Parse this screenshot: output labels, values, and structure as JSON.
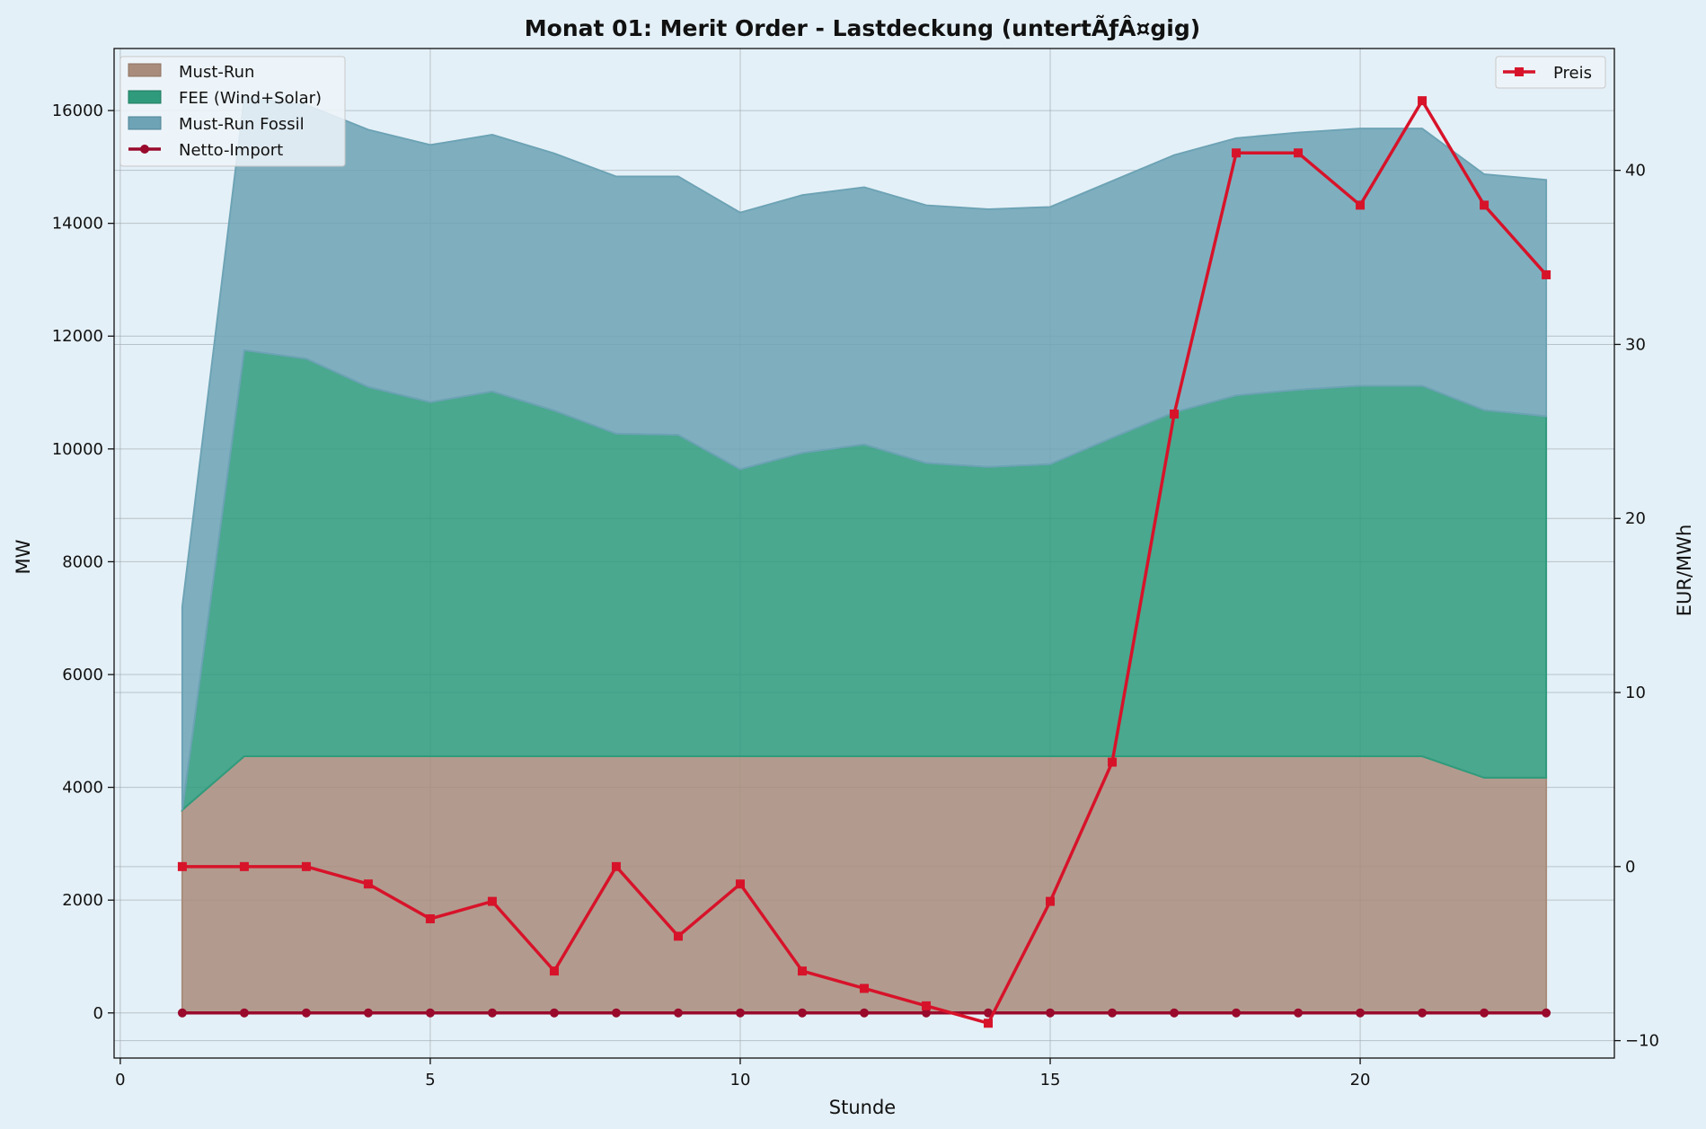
{
  "chart_data": {
    "type": "area",
    "title": "Monat 01: Merit Order - Lastdeckung (untertÃƒÂ¤gig)",
    "xlabel": "Stunde",
    "ylabel": "MW",
    "y2label": "EUR/MWh",
    "xlim": [
      -0.1,
      24.1
    ],
    "ylim": [
      -800,
      17100
    ],
    "y2lim": [
      -11,
      47
    ],
    "x_ticks": [
      0,
      5,
      10,
      15,
      20
    ],
    "y_ticks": [
      0,
      2000,
      4000,
      6000,
      8000,
      10000,
      12000,
      14000,
      16000
    ],
    "y2_ticks": [
      -10,
      0,
      10,
      20,
      30,
      40
    ],
    "grid": true,
    "x": [
      1,
      2,
      3,
      4,
      5,
      6,
      7,
      8,
      9,
      10,
      11,
      12,
      13,
      14,
      15,
      16,
      17,
      18,
      19,
      20,
      21,
      22,
      23
    ],
    "stacked_series": [
      {
        "name": "Must-Run",
        "color": "#a98c7b",
        "values": [
          3600,
          4550,
          4550,
          4550,
          4550,
          4550,
          4550,
          4550,
          4550,
          4550,
          4550,
          4550,
          4550,
          4550,
          4550,
          4550,
          4550,
          4550,
          4550,
          4550,
          4550,
          4170,
          4170
        ]
      },
      {
        "name": "FEE (Wind+Solar)",
        "color": "#2f9b7c",
        "values": [
          0,
          7200,
          7050,
          6550,
          6280,
          6470,
          6130,
          5720,
          5700,
          5090,
          5380,
          5530,
          5200,
          5130,
          5180,
          5650,
          6100,
          6400,
          6500,
          6570,
          6570,
          6520,
          6410
        ]
      },
      {
        "name": "Must-Run Fossil",
        "color": "#6da3b5",
        "values": [
          3600,
          4480,
          4500,
          4560,
          4560,
          4550,
          4560,
          4560,
          4580,
          4550,
          4570,
          4560,
          4570,
          4570,
          4560,
          4550,
          4560,
          4560,
          4560,
          4560,
          4560,
          4180,
          4190
        ]
      }
    ],
    "line_series": [
      {
        "name": "Netto-Import",
        "axis": "left",
        "color": "#990a2c",
        "marker": "circle",
        "values": [
          0,
          0,
          0,
          0,
          0,
          0,
          0,
          0,
          0,
          0,
          0,
          0,
          0,
          0,
          0,
          0,
          0,
          0,
          0,
          0,
          0,
          0,
          0
        ]
      },
      {
        "name": "Preis",
        "axis": "right",
        "color": "#d7132a",
        "marker": "square",
        "values": [
          0,
          0,
          0,
          -1,
          -3,
          -2,
          -6,
          0,
          -4,
          -1,
          -6,
          -7,
          -8,
          -9,
          -2,
          6,
          26,
          41,
          41,
          38,
          44,
          38,
          34
        ]
      }
    ],
    "legend_left": {
      "placement": "upper-left",
      "entries": [
        "Must-Run",
        "FEE (Wind+Solar)",
        "Must-Run Fossil",
        "Netto-Import"
      ]
    },
    "legend_right": {
      "placement": "upper-right",
      "entries": [
        "Preis"
      ]
    }
  }
}
